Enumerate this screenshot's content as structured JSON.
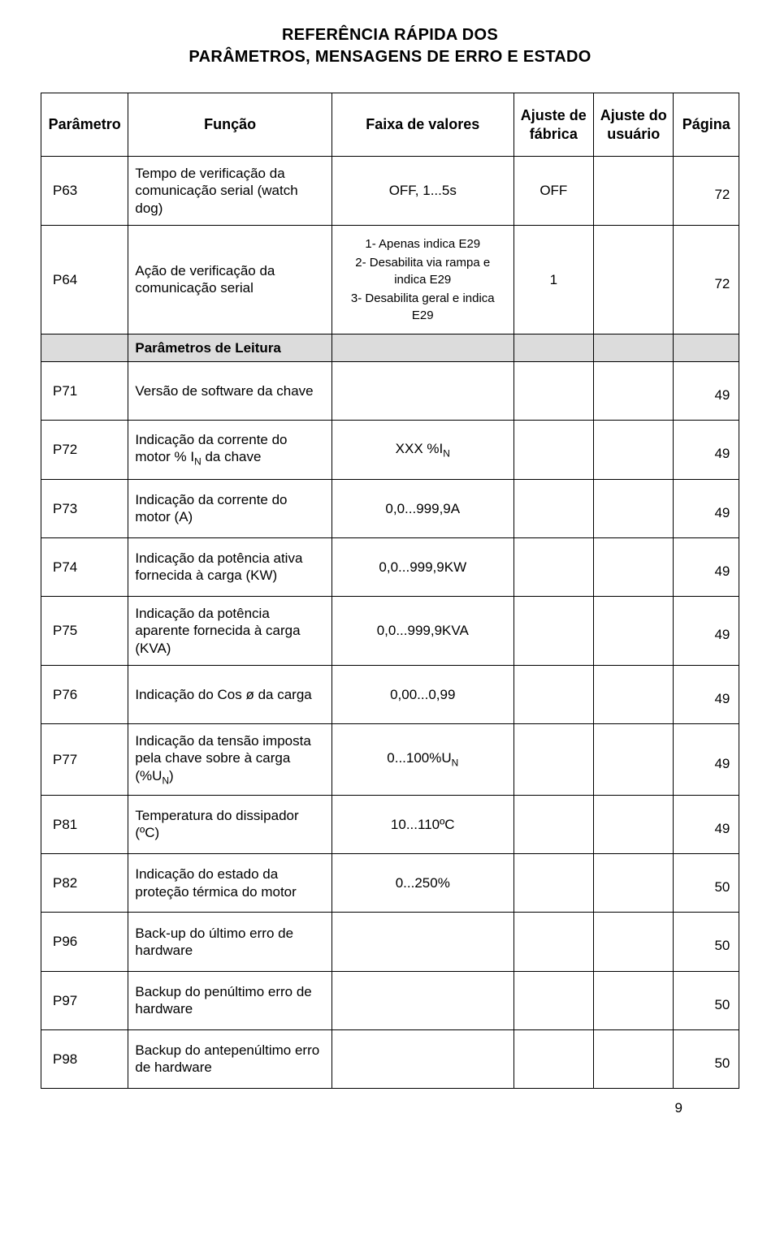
{
  "title_line1": "REFERÊNCIA RÁPIDA DOS",
  "title_line2": "PARÂMETROS, MENSAGENS DE ERRO E ESTADO",
  "headers": {
    "param": "Parâmetro",
    "func": "Função",
    "range": "Faixa de valores",
    "fab": "Ajuste de fábrica",
    "user": "Ajuste do usuário",
    "page": "Página"
  },
  "section_label": "Parâmetros de Leitura",
  "rows": {
    "p63": {
      "param": "P63",
      "func": "Tempo de verificação da comunicação serial (watch dog)",
      "range": "OFF, 1...5s",
      "fab": "OFF",
      "page": "72"
    },
    "p64": {
      "param": "P64",
      "func": "Ação de verificação da comunicação serial",
      "range_l1": "1- Apenas indica E29",
      "range_l2": "2- Desabilita via rampa e indica E29",
      "range_l3": "3- Desabilita geral e indica E29",
      "fab": "1",
      "page": "72"
    },
    "p71": {
      "param": "P71",
      "func": "Versão de software da chave",
      "range": "",
      "fab": "",
      "page": "49"
    },
    "p72": {
      "param": "P72",
      "func_pre": "Indicação da corrente do motor % I",
      "func_sub": "N",
      "func_post": " da chave",
      "range_pre": "XXX %I",
      "range_sub": "N",
      "fab": "",
      "page": "49"
    },
    "p73": {
      "param": "P73",
      "func": "Indicação da corrente do motor (A)",
      "range": "0,0...999,9A",
      "fab": "",
      "page": "49"
    },
    "p74": {
      "param": "P74",
      "func": "Indicação da potência ativa fornecida à carga (KW)",
      "range": "0,0...999,9KW",
      "fab": "",
      "page": "49"
    },
    "p75": {
      "param": "P75",
      "func": "Indicação da potência aparente fornecida à carga (KVA)",
      "range": "0,0...999,9KVA",
      "fab": "",
      "page": "49"
    },
    "p76": {
      "param": "P76",
      "func": "Indicação do Cos ø da carga",
      "range": "0,00...0,99",
      "fab": "",
      "page": "49"
    },
    "p77": {
      "param": "P77",
      "func_pre": "Indicação da tensão imposta pela chave sobre à carga (%U",
      "func_sub": "N",
      "func_post": ")",
      "range_pre": "0...100%U",
      "range_sub": "N",
      "fab": "",
      "page": "49"
    },
    "p81": {
      "param": "P81",
      "func": "Temperatura do dissipador (ºC)",
      "range": "10...110ºC",
      "fab": "",
      "page": "49"
    },
    "p82": {
      "param": "P82",
      "func": "Indicação do estado da proteção térmica do motor",
      "range": "0...250%",
      "fab": "",
      "page": "50"
    },
    "p96": {
      "param": "P96",
      "func": "Back-up do último erro de hardware",
      "range": "",
      "fab": "",
      "page": "50"
    },
    "p97": {
      "param": "P97",
      "func": "Backup do penúltimo erro de hardware",
      "range": "",
      "fab": "",
      "page": "50"
    },
    "p98": {
      "param": "P98",
      "func": "Backup do antepenúltimo erro de hardware",
      "range": "",
      "fab": "",
      "page": "50"
    }
  },
  "footer_page_number": "9",
  "colors": {
    "section_bg": "#dcdcdc",
    "border": "#000000",
    "text": "#000000",
    "bg": "#ffffff"
  }
}
